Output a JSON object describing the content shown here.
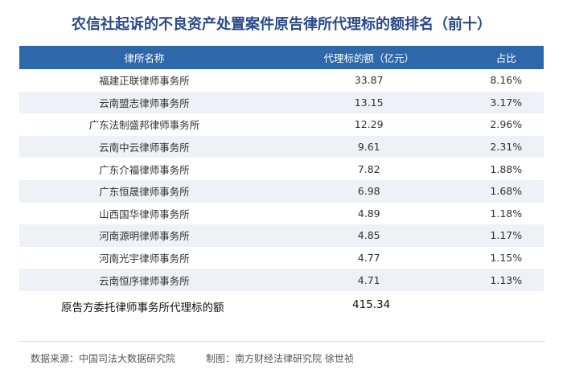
{
  "title": "农信社起诉的不良资产处置案件原告律所代理标的额排名（前十）",
  "headers": [
    "律所名称",
    "代理标的额（亿元）",
    "占比"
  ],
  "rows": [
    [
      "福建正联律师事务所",
      "33.87",
      "8.16%"
    ],
    [
      "云南盟志律师事务所",
      "13.15",
      "3.17%"
    ],
    [
      "广东法制盛邦律师事务所",
      "12.29",
      "2.96%"
    ],
    [
      "云南中云律师事务所",
      "9.61",
      "2.31%"
    ],
    [
      "广东介福律师事务所",
      "7.82",
      "1.88%"
    ],
    [
      "广东恒晟律师事务所",
      "6.98",
      "1.68%"
    ],
    [
      "山西国华律师事务所",
      "4.89",
      "1.18%"
    ],
    [
      "河南源明律师事务所",
      "4.85",
      "1.17%"
    ],
    [
      "河南光宇律师事务所",
      "4.77",
      "1.15%"
    ],
    [
      "云南恒序律师事务所",
      "4.71",
      "1.13%"
    ]
  ],
  "total": {
    "label": "原告方委托律师事务所代理标的额",
    "value": "415.34"
  },
  "footer": {
    "source": "数据来源：中国司法大数据研究院",
    "credit": "制图：南方财经法律研究院 徐世祯"
  },
  "colors": {
    "header_bg": "#2e68aa",
    "title": "#2a4a8a",
    "stripe": "#eef1f5"
  }
}
